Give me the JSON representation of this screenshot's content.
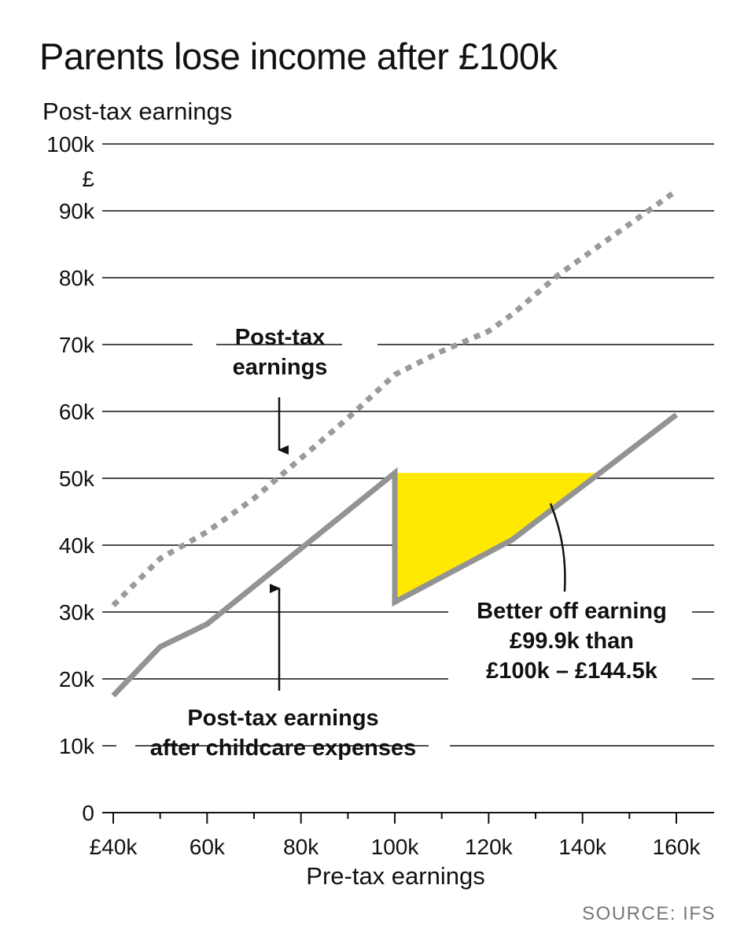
{
  "header": {
    "title": "Parents lose income after £100k",
    "ylabel": "Post-tax earnings",
    "source": "SOURCE: IFS"
  },
  "chart_data": {
    "type": "line",
    "title": "Parents lose income after £100k",
    "xlabel": "Pre-tax earnings",
    "ylabel": "Post-tax earnings",
    "yunit": "£",
    "xlim": [
      40000,
      160000
    ],
    "ylim": [
      0,
      100000
    ],
    "x_ticks": [
      40000,
      60000,
      80000,
      100000,
      120000,
      140000,
      160000
    ],
    "x_tick_labels": [
      "£40k",
      "60k",
      "80k",
      "100k",
      "120k",
      "140k",
      "160k"
    ],
    "y_ticks": [
      0,
      10000,
      20000,
      30000,
      40000,
      50000,
      60000,
      70000,
      80000,
      90000,
      100000
    ],
    "y_tick_labels": [
      "0",
      "10k",
      "20k",
      "30k",
      "40k",
      "50k",
      "60k",
      "70k",
      "80k",
      "90k",
      "100k"
    ],
    "grid": true,
    "series": [
      {
        "name": "Post-tax earnings",
        "style": "dotted",
        "color": "#9a9a9a",
        "points": [
          [
            40000,
            31000
          ],
          [
            50000,
            38000
          ],
          [
            60000,
            42000
          ],
          [
            70000,
            47000
          ],
          [
            80000,
            53000
          ],
          [
            90000,
            59000
          ],
          [
            100000,
            65500
          ],
          [
            110000,
            69000
          ],
          [
            120000,
            72000
          ],
          [
            125000,
            74500
          ],
          [
            135000,
            80500
          ],
          [
            145000,
            85500
          ],
          [
            160000,
            93000
          ]
        ]
      },
      {
        "name": "Post-tax earnings after childcare expenses",
        "style": "solid",
        "color": "#939393",
        "points": [
          [
            40000,
            17500
          ],
          [
            50000,
            24800
          ],
          [
            60000,
            28200
          ],
          [
            100000,
            50800
          ],
          [
            100000,
            31500
          ],
          [
            125000,
            40800
          ],
          [
            160000,
            59500
          ]
        ]
      }
    ],
    "shaded_region": {
      "label": "Better off earning £99.9k than £100k – £144.5k",
      "color": "#ffe900",
      "level": 50800,
      "x_range": [
        100000,
        144500
      ]
    },
    "annotations": [
      {
        "id": "post-tax",
        "lines": [
          "Post-tax",
          "earnings"
        ]
      },
      {
        "id": "after-childcare",
        "lines": [
          "Post-tax earnings",
          "after childcare expenses"
        ]
      },
      {
        "id": "better-off",
        "lines": [
          "Better off earning",
          "£99.9k than",
          "£100k – £144.5k"
        ]
      }
    ]
  }
}
